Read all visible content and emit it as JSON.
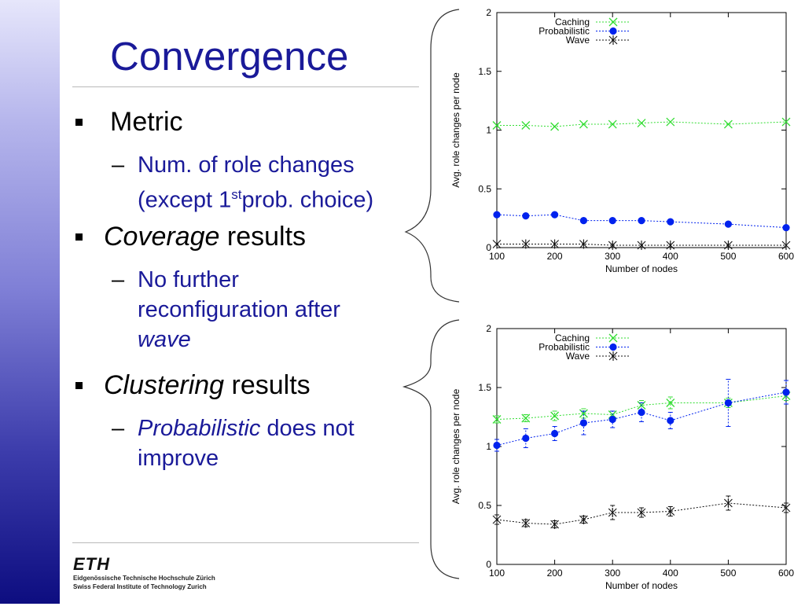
{
  "slide": {
    "title": "Convergence",
    "bullets": [
      {
        "text": "Metric"
      },
      {
        "italic": "Coverage",
        "text": " results"
      },
      {
        "italic": "Clustering",
        "text": " results"
      }
    ],
    "sub1": {
      "pre": "Num. of role changes",
      "line2a": "(except 1",
      "sup": "st",
      "line2b": "prob. choice)"
    },
    "sub2": {
      "line1": "No further",
      "line2": "reconfiguration after",
      "italic": "wave"
    },
    "sub3": {
      "italic": "Probabilistic",
      "rest": " does not",
      "line2": "improve"
    },
    "footer": {
      "logo": "ETH",
      "line1": "Eidgenössische Technische Hochschule Zürich",
      "line2": "Swiss Federal Institute of Technology Zurich"
    }
  },
  "chart_data": [
    {
      "type": "line",
      "xlabel": "Number of nodes",
      "ylabel": "Avg. role changes per node",
      "xlim": [
        100,
        600
      ],
      "ylim": [
        0,
        2
      ],
      "xticks": [
        100,
        200,
        300,
        400,
        500,
        600
      ],
      "yticks": [
        0,
        0.5,
        1,
        1.5,
        2
      ],
      "legend": "top-center",
      "x": [
        100,
        150,
        200,
        250,
        300,
        350,
        400,
        500,
        600
      ],
      "series": [
        {
          "name": "Caching",
          "color": "#33dd33",
          "marker": "x",
          "values": [
            1.04,
            1.04,
            1.03,
            1.05,
            1.05,
            1.06,
            1.07,
            1.05,
            1.07
          ]
        },
        {
          "name": "Probabilistic",
          "color": "#0022ee",
          "marker": "dot",
          "values": [
            0.28,
            0.27,
            0.28,
            0.23,
            0.23,
            0.23,
            0.22,
            0.2,
            0.17
          ]
        },
        {
          "name": "Wave",
          "color": "#111111",
          "marker": "star",
          "values": [
            0.03,
            0.03,
            0.03,
            0.03,
            0.02,
            0.02,
            0.02,
            0.02,
            0.02
          ]
        }
      ]
    },
    {
      "type": "line",
      "xlabel": "Number of nodes",
      "ylabel": "Avg. role changes per node",
      "xlim": [
        100,
        600
      ],
      "ylim": [
        0,
        2
      ],
      "xticks": [
        100,
        200,
        300,
        400,
        500,
        600
      ],
      "yticks": [
        0,
        0.5,
        1,
        1.5,
        2
      ],
      "legend": "top-center",
      "x": [
        100,
        150,
        200,
        250,
        300,
        350,
        400,
        500,
        600
      ],
      "series": [
        {
          "name": "Caching",
          "color": "#33dd33",
          "marker": "x",
          "values": [
            1.23,
            1.24,
            1.26,
            1.28,
            1.27,
            1.35,
            1.37,
            1.37,
            1.43
          ],
          "errors": [
            0.03,
            0.03,
            0.04,
            0.04,
            0.03,
            0.04,
            0.05,
            0.04,
            0.04
          ]
        },
        {
          "name": "Probabilistic",
          "color": "#0022ee",
          "marker": "dot",
          "values": [
            1.01,
            1.07,
            1.11,
            1.2,
            1.23,
            1.29,
            1.22,
            1.37,
            1.46
          ],
          "errors": [
            0.05,
            0.08,
            0.06,
            0.1,
            0.07,
            0.08,
            0.07,
            0.2,
            0.1
          ]
        },
        {
          "name": "Wave",
          "color": "#111111",
          "marker": "star",
          "values": [
            0.38,
            0.35,
            0.34,
            0.38,
            0.44,
            0.44,
            0.45,
            0.52,
            0.48
          ],
          "errors": [
            0.04,
            0.03,
            0.03,
            0.03,
            0.06,
            0.04,
            0.04,
            0.06,
            0.04
          ]
        }
      ]
    }
  ]
}
